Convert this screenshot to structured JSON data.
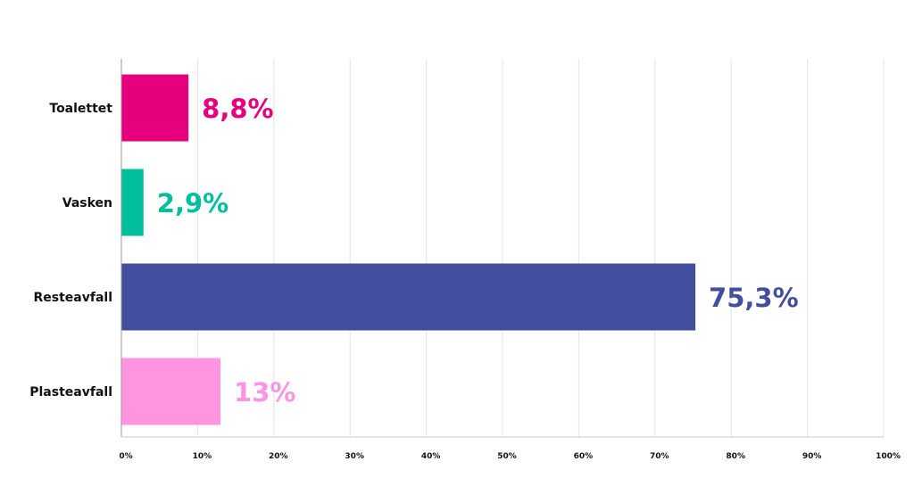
{
  "chart_data": {
    "type": "bar",
    "orientation": "horizontal",
    "categories": [
      "Toalettet",
      "Vasken",
      "Resteavfall",
      "Plasteavfall"
    ],
    "values": [
      8.8,
      2.9,
      75.3,
      13
    ],
    "value_labels": [
      "8,8%",
      "2,9%",
      "75,3%",
      "13%"
    ],
    "colors": [
      "#e6007e",
      "#00bf9a",
      "#434f9e",
      "#ff95e0"
    ],
    "xlim": [
      0,
      100
    ],
    "x_ticks": [
      0,
      10,
      20,
      30,
      40,
      50,
      60,
      70,
      80,
      90,
      100
    ],
    "x_tick_labels": [
      "0%",
      "10%",
      "20%",
      "30%",
      "40%",
      "50%",
      "60%",
      "70%",
      "80%",
      "90%",
      "100%"
    ],
    "grid": "vertical",
    "legend": "none",
    "title": "",
    "xlabel": "",
    "ylabel": ""
  }
}
